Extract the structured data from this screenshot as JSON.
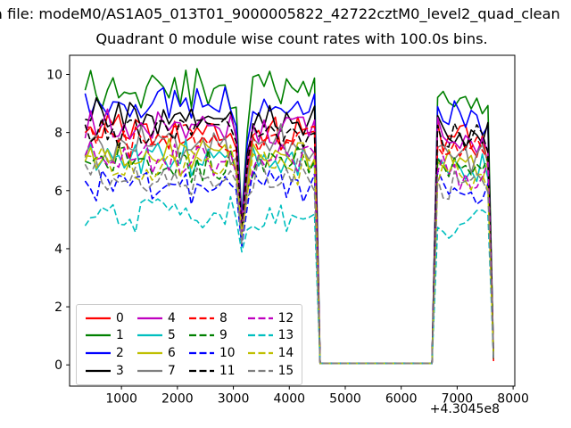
{
  "window": {
    "title_line": "a file: modeM0/AS1A05_013T01_9000005822_42722cztM0_level2_quad_clean",
    "chart_title": "Quadrant 0 module wise count rates with 100.0s bins."
  },
  "chart_data": {
    "type": "line",
    "title": "Quadrant 0 module wise count rates with 100.0s bins.",
    "suptitle_clipped": "a file: modeM0/AS1A05_013T01_9000005822_42722cztM0_level2_quad_clean",
    "xlabel": "",
    "ylabel": "",
    "x_offset_label": "+4.3045e8",
    "xticks": [
      1000,
      2000,
      3000,
      4000,
      5000,
      6000,
      7000,
      8000
    ],
    "yticks": [
      0,
      2,
      4,
      6,
      8,
      10
    ],
    "xlim": [
      73,
      8030
    ],
    "ylim": [
      -0.73,
      10.66
    ],
    "grid": false,
    "legend_position": "lower-left",
    "legend_columns": 4,
    "bin_seconds": 100,
    "x_start": 350,
    "x_end": 7650,
    "segments": {
      "active1": [
        350,
        4450
      ],
      "gap_zero": [
        4550,
        6550
      ],
      "active2": [
        6650,
        7550
      ],
      "end_point_x": 7650,
      "zero_level": 0.05,
      "end_level": 0.2,
      "active2_scale": 0.97
    },
    "dip": {
      "x": 3150,
      "floor_base": 3.9,
      "floor_slope": 0.3,
      "ref_level": 5.2
    },
    "series": [
      {
        "label": "0",
        "color": "#ff0000",
        "style": "solid",
        "level": 7.95
      },
      {
        "label": "1",
        "color": "#008000",
        "style": "solid",
        "level": 9.5
      },
      {
        "label": "2",
        "color": "#0000ff",
        "style": "solid",
        "level": 8.9
      },
      {
        "label": "3",
        "color": "#000000",
        "style": "solid",
        "level": 8.5
      },
      {
        "label": "4",
        "color": "#bf00bf",
        "style": "solid",
        "level": 8.2
      },
      {
        "label": "5",
        "color": "#00bfbf",
        "style": "solid",
        "level": 7.1
      },
      {
        "label": "6",
        "color": "#bfbf00",
        "style": "solid",
        "level": 7.35
      },
      {
        "label": "7",
        "color": "#808080",
        "style": "solid",
        "level": 7.6
      },
      {
        "label": "8",
        "color": "#ff0000",
        "style": "dashed",
        "level": 7.75
      },
      {
        "label": "9",
        "color": "#008000",
        "style": "dashed",
        "level": 6.95
      },
      {
        "label": "10",
        "color": "#0000ff",
        "style": "dashed",
        "level": 6.25
      },
      {
        "label": "11",
        "color": "#000000",
        "style": "dashed",
        "level": 8.05
      },
      {
        "label": "12",
        "color": "#bf00bf",
        "style": "dashed",
        "level": 7.0
      },
      {
        "label": "13",
        "color": "#00bfbf",
        "style": "dashed",
        "level": 5.2
      },
      {
        "label": "14",
        "color": "#bfbf00",
        "style": "dashed",
        "level": 6.85
      },
      {
        "label": "15",
        "color": "#808080",
        "style": "dashed",
        "level": 6.5
      }
    ]
  }
}
